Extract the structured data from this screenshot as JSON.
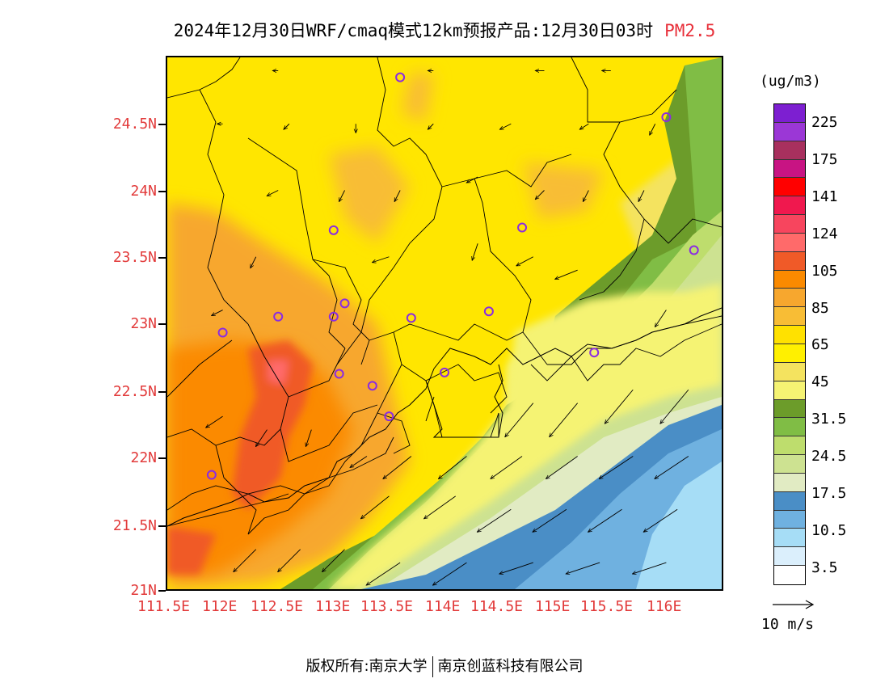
{
  "title": {
    "main": "2024年12月30日WRF/cmaq模式12km预报产品:12月30日03时",
    "variable": "PM2.5"
  },
  "axes": {
    "lat_labels": [
      "24.5N",
      "24N",
      "23.5N",
      "23N",
      "22.5N",
      "22N",
      "21.5N",
      "21N"
    ],
    "lon_labels": [
      "111.5E",
      "112E",
      "112.5E",
      "113E",
      "113.5E",
      "114E",
      "114.5E",
      "115E",
      "115.5E",
      "116E"
    ]
  },
  "colorbar": {
    "unit": "(ug/m3)",
    "labels": [
      "225",
      "175",
      "141",
      "124",
      "105",
      "85",
      "65",
      "45",
      "31.5",
      "24.5",
      "17.5",
      "10.5",
      "3.5"
    ],
    "colors": [
      "#7d1fd1",
      "#9b37d6",
      "#a8305e",
      "#c81483",
      "#ff0000",
      "#f0184e",
      "#f7455e",
      "#ff6a6a",
      "#f05a28",
      "#fb8a00",
      "#f7a72e",
      "#f8bd35",
      "#ffe100",
      "#fff000",
      "#f4e35f",
      "#f5f373",
      "#6c9c2a",
      "#80bd45",
      "#bedd6d",
      "#cde291",
      "#e1ebc3",
      "#4a8ec6",
      "#6fb1e0",
      "#a6ddf6",
      "#dbeffc",
      "#ffffff"
    ]
  },
  "chart_data": {
    "type": "heatmap",
    "variable": "PM2.5",
    "unit": "ug/m3",
    "lon_range": [
      111.5,
      116.5
    ],
    "lat_range": [
      21.0,
      25.0
    ],
    "wind_reference": "10 m/s",
    "station_markers": [
      [
        113.6,
        24.85
      ],
      [
        116.0,
        24.55
      ],
      [
        113.0,
        23.7
      ],
      [
        114.7,
        23.72
      ],
      [
        116.25,
        23.55
      ],
      [
        112.5,
        23.05
      ],
      [
        113.1,
        23.15
      ],
      [
        113.0,
        23.05
      ],
      [
        113.7,
        23.04
      ],
      [
        114.4,
        23.09
      ],
      [
        112.0,
        22.93
      ],
      [
        113.05,
        22.62
      ],
      [
        113.35,
        22.53
      ],
      [
        114.0,
        22.63
      ],
      [
        113.5,
        22.3
      ],
      [
        115.35,
        22.78
      ],
      [
        111.9,
        21.86
      ]
    ],
    "wind_vectors": [
      [
        113.7,
        22.0,
        -0.25,
        -0.2
      ],
      [
        114.2,
        22.0,
        -0.25,
        -0.2
      ],
      [
        114.7,
        22.0,
        -0.28,
        -0.2
      ],
      [
        115.2,
        22.0,
        -0.28,
        -0.2
      ],
      [
        115.7,
        22.0,
        -0.3,
        -0.2
      ],
      [
        116.2,
        22.0,
        -0.3,
        -0.2
      ],
      [
        113.5,
        21.7,
        -0.25,
        -0.2
      ],
      [
        114.1,
        21.7,
        -0.28,
        -0.2
      ],
      [
        114.6,
        21.6,
        -0.3,
        -0.2
      ],
      [
        115.1,
        21.6,
        -0.3,
        -0.2
      ],
      [
        115.6,
        21.6,
        -0.3,
        -0.2
      ],
      [
        116.1,
        21.6,
        -0.3,
        -0.2
      ],
      [
        113.6,
        21.2,
        -0.3,
        -0.2
      ],
      [
        114.2,
        21.2,
        -0.3,
        -0.2
      ],
      [
        114.8,
        21.2,
        -0.3,
        -0.1
      ],
      [
        115.4,
        21.2,
        -0.3,
        -0.1
      ],
      [
        116.0,
        21.2,
        -0.3,
        -0.1
      ],
      [
        115.7,
        22.5,
        -0.25,
        -0.3
      ],
      [
        116.2,
        22.5,
        -0.25,
        -0.3
      ],
      [
        115.2,
        22.4,
        -0.25,
        -0.3
      ],
      [
        114.8,
        22.4,
        -0.25,
        -0.3
      ],
      [
        112.3,
        21.3,
        -0.2,
        -0.2
      ],
      [
        112.7,
        21.3,
        -0.2,
        -0.2
      ],
      [
        113.1,
        21.3,
        -0.2,
        -0.2
      ],
      [
        112.0,
        22.3,
        -0.15,
        -0.1
      ],
      [
        112.4,
        22.2,
        -0.1,
        -0.15
      ],
      [
        112.8,
        22.2,
        -0.05,
        -0.15
      ],
      [
        113.3,
        22.0,
        -0.15,
        -0.1
      ],
      [
        113.5,
        23.5,
        -0.15,
        -0.05
      ],
      [
        114.3,
        23.6,
        -0.05,
        -0.15
      ],
      [
        114.8,
        23.5,
        -0.15,
        -0.08
      ],
      [
        115.2,
        23.4,
        -0.2,
        -0.08
      ],
      [
        116.0,
        23.1,
        -0.1,
        -0.15
      ],
      [
        112.0,
        23.1,
        -0.1,
        -0.05
      ],
      [
        112.3,
        23.5,
        -0.05,
        -0.1
      ],
      [
        112.5,
        24.0,
        -0.1,
        -0.05
      ],
      [
        113.1,
        24.0,
        -0.05,
        -0.1
      ],
      [
        113.6,
        24.0,
        -0.05,
        -0.1
      ],
      [
        114.3,
        24.1,
        -0.1,
        -0.05
      ],
      [
        114.9,
        24.0,
        -0.08,
        -0.08
      ],
      [
        115.3,
        24.0,
        -0.05,
        -0.1
      ],
      [
        115.8,
        24.0,
        -0.05,
        -0.1
      ],
      [
        112.0,
        24.5,
        -0.05,
        0.0
      ],
      [
        112.6,
        24.5,
        -0.05,
        -0.05
      ],
      [
        113.2,
        24.5,
        0.0,
        -0.08
      ],
      [
        113.9,
        24.5,
        -0.05,
        -0.05
      ],
      [
        114.6,
        24.5,
        -0.1,
        -0.05
      ],
      [
        115.3,
        24.5,
        -0.08,
        -0.05
      ],
      [
        115.9,
        24.5,
        -0.05,
        -0.1
      ],
      [
        112.5,
        24.9,
        -0.05,
        0.0
      ],
      [
        113.9,
        24.9,
        -0.05,
        0.0
      ],
      [
        114.9,
        24.9,
        -0.08,
        0.0
      ],
      [
        115.5,
        24.9,
        -0.08,
        0.0
      ]
    ]
  },
  "footer": {
    "left": "版权所有:南京大学",
    "right": "南京创蓝科技有限公司"
  }
}
